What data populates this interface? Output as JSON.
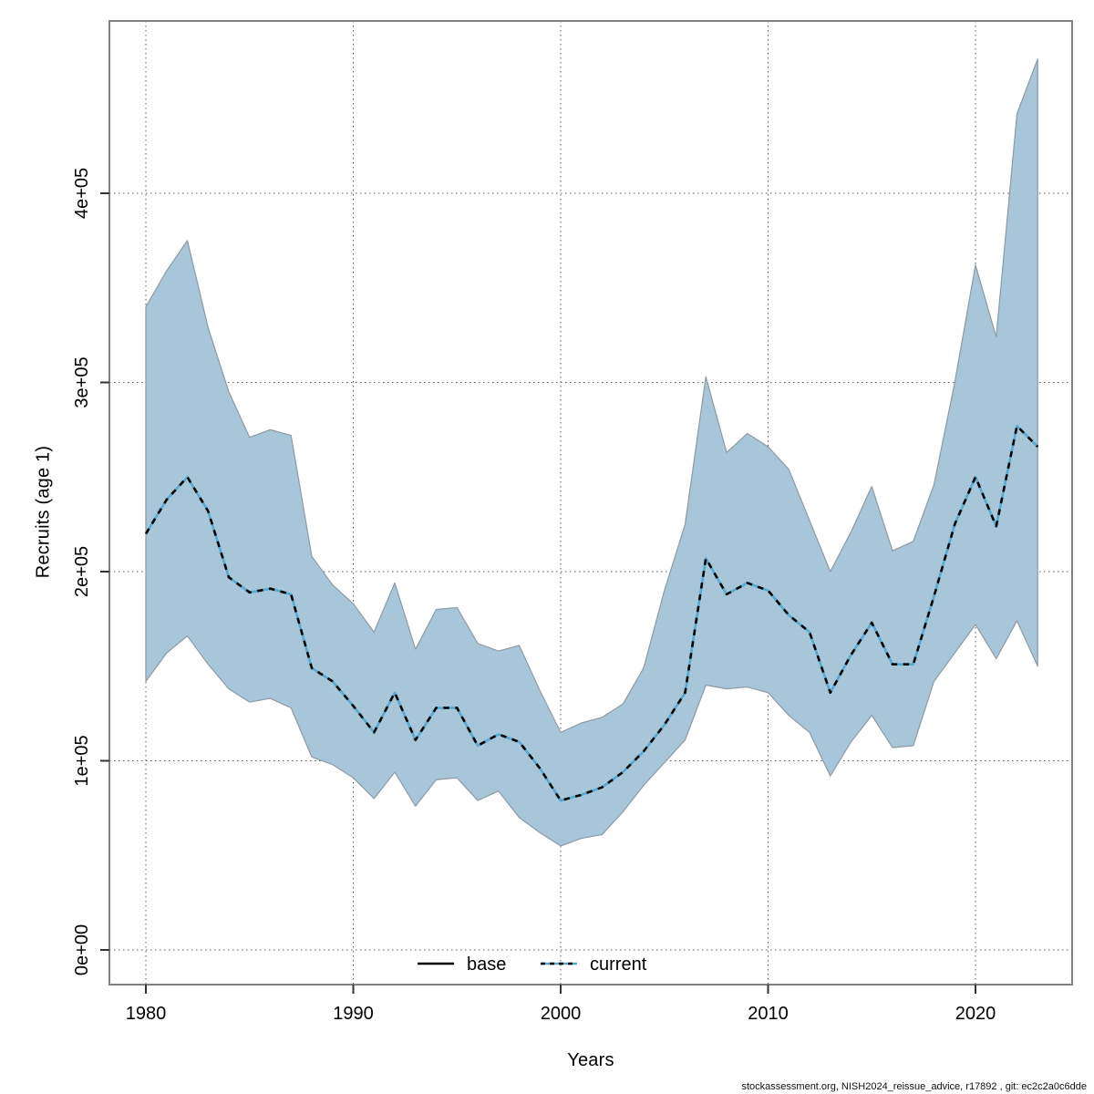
{
  "figure": {
    "kind": "line chart with confidence ribbon",
    "footer": "stockassessment.org, NISH2024_reissue_advice, r17892 , git: ec2c2a0c6dde"
  },
  "axes": {
    "xlabel": "Years",
    "ylabel": "Recruits (age 1)",
    "x_ticks": [
      1980,
      1990,
      2000,
      2010,
      2020
    ],
    "y_ticks": [
      {
        "value": 0,
        "label": "0e+00"
      },
      {
        "value": 100000,
        "label": "1e+05"
      },
      {
        "value": 200000,
        "label": "2e+05"
      },
      {
        "value": 300000,
        "label": "3e+05"
      },
      {
        "value": 400000,
        "label": "4e+05"
      }
    ],
    "grid": "dotted, at every labelled tick"
  },
  "legend": {
    "position": "bottom-center inside plot",
    "items": [
      {
        "label": "base",
        "line_style": "solid",
        "line_color": "#000000"
      },
      {
        "label": "current",
        "line_style": "dotted",
        "line_color": "#58a8d4"
      }
    ]
  },
  "colors": {
    "ribbon_fill": "#a7c6d9",
    "ribbon_edge": "#8d9aa3",
    "current_line_blue": "#58a8d4",
    "base_line": "#000000",
    "grid_line": "#5a5a5a",
    "plot_border": "#808080",
    "tick": "#333333",
    "text": "#000000",
    "background": "#ffffff"
  },
  "chart_data": {
    "type": "line",
    "title": "",
    "xlabel": "Years",
    "ylabel": "Recruits (age 1)",
    "xlim": [
      1978.3,
      2024.7
    ],
    "ylim": [
      -18000,
      492000
    ],
    "legend_position": "bottom-center",
    "grid": true,
    "x": [
      1980,
      1981,
      1982,
      1983,
      1984,
      1985,
      1986,
      1987,
      1988,
      1989,
      1990,
      1991,
      1992,
      1993,
      1994,
      1995,
      1996,
      1997,
      1998,
      1999,
      2000,
      2001,
      2002,
      2003,
      2004,
      2005,
      2006,
      2007,
      2008,
      2009,
      2010,
      2011,
      2012,
      2013,
      2014,
      2015,
      2016,
      2017,
      2018,
      2019,
      2020,
      2021,
      2022,
      2023
    ],
    "series": [
      {
        "name": "current",
        "style": "solid light-blue overplotted with black dotted (appears as alternating black/blue dashes)",
        "values": [
          220000,
          238000,
          250000,
          232000,
          197000,
          189000,
          191000,
          188000,
          149000,
          142000,
          129000,
          115000,
          136000,
          111000,
          128000,
          128000,
          108000,
          114000,
          110000,
          96000,
          79000,
          82000,
          86000,
          94000,
          105000,
          119000,
          136000,
          207000,
          188000,
          194000,
          190000,
          177000,
          168000,
          136000,
          156000,
          173000,
          151000,
          151000,
          187000,
          225000,
          250000,
          224000,
          277000,
          266000
        ]
      },
      {
        "name": "base",
        "style": "solid black, coincides with (hidden beneath) the current line in the plot",
        "values": [
          220000,
          238000,
          250000,
          232000,
          197000,
          189000,
          191000,
          188000,
          149000,
          142000,
          129000,
          115000,
          136000,
          111000,
          128000,
          128000,
          108000,
          114000,
          110000,
          96000,
          79000,
          82000,
          86000,
          94000,
          105000,
          119000,
          136000,
          207000,
          188000,
          194000,
          190000,
          177000,
          168000,
          136000,
          156000,
          173000,
          151000,
          151000,
          187000,
          225000,
          250000,
          224000,
          277000,
          266000
        ]
      }
    ],
    "band": {
      "name": "confidence interval (shaded ribbon)",
      "lower": [
        142000,
        157000,
        166000,
        151000,
        138000,
        131000,
        133000,
        128000,
        102000,
        98000,
        91000,
        80000,
        94000,
        76000,
        90000,
        91000,
        79000,
        84000,
        70000,
        62000,
        55000,
        59000,
        61000,
        73000,
        87000,
        99000,
        111000,
        140000,
        138000,
        139000,
        136000,
        124000,
        115000,
        92000,
        110000,
        124000,
        107000,
        108000,
        142000,
        157000,
        172000,
        154000,
        174000,
        150000
      ],
      "upper": [
        340000,
        359000,
        375000,
        329000,
        295000,
        271000,
        275000,
        272000,
        208000,
        193000,
        183000,
        168000,
        194000,
        159000,
        180000,
        181000,
        162000,
        158000,
        161000,
        137000,
        115000,
        120000,
        123000,
        130000,
        149000,
        190000,
        225000,
        303000,
        263000,
        273000,
        266000,
        254000,
        227000,
        200000,
        221000,
        245000,
        211000,
        216000,
        246000,
        300000,
        362000,
        324000,
        442000,
        471000
      ]
    }
  }
}
